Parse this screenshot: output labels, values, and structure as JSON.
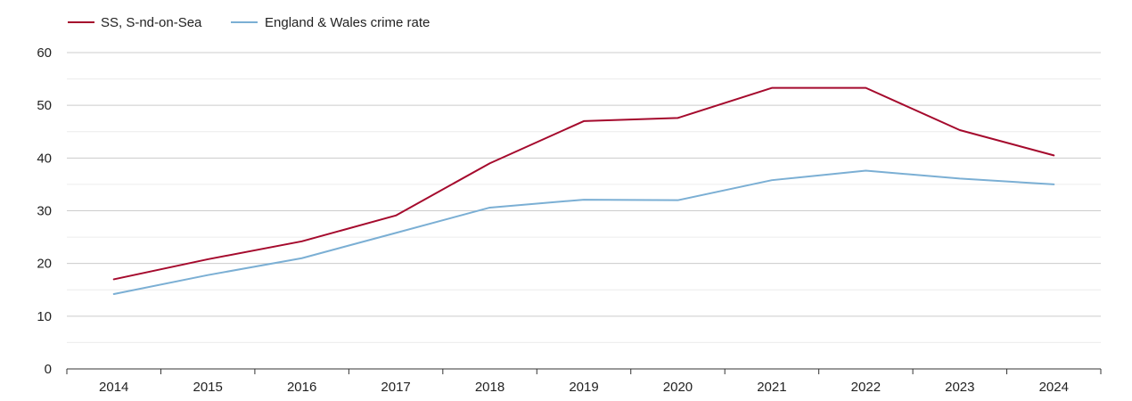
{
  "chart_data": {
    "type": "line",
    "title": "",
    "xlabel": "",
    "ylabel": "",
    "categories": [
      "2014",
      "2015",
      "2016",
      "2017",
      "2018",
      "2019",
      "2020",
      "2021",
      "2022",
      "2023",
      "2024"
    ],
    "ylim": [
      0,
      60
    ],
    "yticks": [
      "0",
      "10",
      "20",
      "30",
      "40",
      "50",
      "60"
    ],
    "grid": true,
    "legend_position": "top-left",
    "series": [
      {
        "name": "SS, S-nd-on-Sea",
        "color": "#a50a2d",
        "values": [
          17.0,
          20.8,
          24.2,
          29.1,
          39.0,
          47.0,
          47.6,
          53.3,
          53.3,
          45.3,
          40.5
        ]
      },
      {
        "name": "England & Wales crime rate",
        "color": "#7bafd4",
        "values": [
          14.2,
          17.8,
          21.0,
          25.8,
          30.6,
          32.1,
          32.0,
          35.8,
          37.6,
          36.1,
          35.0
        ]
      }
    ]
  }
}
